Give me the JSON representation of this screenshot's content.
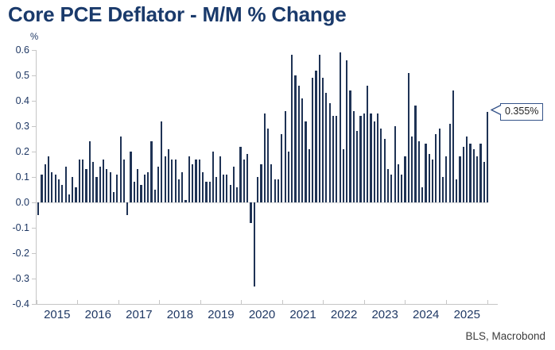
{
  "header": {
    "title": "Core PCE Deflator - M/M % Change"
  },
  "footer": {
    "source": "BLS, Macrobond"
  },
  "callout": {
    "label": "0.355%"
  },
  "chart_data": {
    "type": "bar",
    "title": "Core PCE Deflator - M/M % Change",
    "unit_label": "%",
    "xlabel": "",
    "ylabel": "%",
    "ylim": [
      -0.4,
      0.6
    ],
    "y_ticks": [
      0.6,
      0.5,
      0.4,
      0.3,
      0.2,
      0.1,
      0.0,
      -0.1,
      -0.2,
      -0.3,
      -0.4
    ],
    "y_tick_labels": [
      "0.6",
      "0.5",
      "0.4",
      "0.3",
      "0.2",
      "0.1",
      "0.0",
      "-0.1",
      "-0.2",
      "-0.3",
      "-0.4"
    ],
    "x_year_labels": [
      "2015",
      "2016",
      "2017",
      "2018",
      "2019",
      "2020",
      "2021",
      "2022",
      "2023",
      "2024",
      "2025"
    ],
    "frequency": "monthly",
    "start_year": 2015,
    "grid": "zero-line-only",
    "legend": "none",
    "bar_color": "#1f3355",
    "axis_color": "#c6c6c6",
    "label_color": "#1f3864",
    "last_value_label": "0.355%",
    "last_value": 0.355,
    "values": [
      -0.05,
      0.11,
      0.15,
      0.18,
      0.12,
      0.11,
      0.09,
      0.07,
      0.14,
      0.03,
      0.1,
      0.06,
      0.17,
      0.17,
      0.13,
      0.24,
      0.16,
      0.1,
      0.14,
      0.17,
      0.13,
      0.12,
      0.04,
      0.11,
      0.26,
      0.17,
      -0.05,
      0.2,
      0.08,
      0.13,
      0.07,
      0.11,
      0.12,
      0.24,
      0.05,
      0.14,
      0.32,
      0.18,
      0.21,
      0.17,
      0.17,
      0.09,
      0.12,
      0.01,
      0.18,
      0.15,
      0.17,
      0.17,
      0.12,
      0.08,
      0.08,
      0.2,
      0.1,
      0.18,
      0.11,
      0.11,
      0.07,
      0.14,
      0.06,
      0.22,
      0.17,
      0.19,
      -0.08,
      -0.33,
      0.1,
      0.15,
      0.35,
      0.29,
      0.15,
      0.09,
      0.09,
      0.27,
      0.36,
      0.2,
      0.58,
      0.5,
      0.46,
      0.41,
      0.32,
      0.21,
      0.49,
      0.52,
      0.58,
      0.49,
      0.43,
      0.39,
      0.34,
      0.34,
      0.59,
      0.21,
      0.56,
      0.44,
      0.36,
      0.28,
      0.34,
      0.35,
      0.46,
      0.35,
      0.32,
      0.35,
      0.29,
      0.25,
      0.13,
      0.11,
      0.3,
      0.15,
      0.11,
      0.18,
      0.51,
      0.26,
      0.38,
      0.24,
      0.06,
      0.23,
      0.19,
      0.17,
      0.27,
      0.29,
      0.1,
      0.18,
      0.31,
      0.44,
      0.09,
      0.18,
      0.22,
      0.26,
      0.23,
      0.21,
      0.18,
      0.23,
      0.16,
      0.355
    ]
  }
}
